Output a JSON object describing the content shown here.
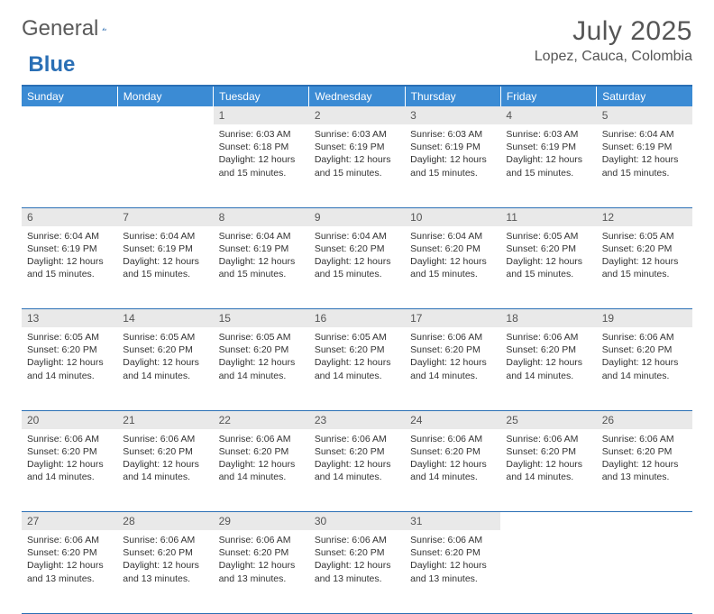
{
  "logo": {
    "part1": "General",
    "part2": "Blue"
  },
  "title": "July 2025",
  "location": "Lopez, Cauca, Colombia",
  "colors": {
    "header_bg": "#3b8bd4",
    "border": "#2a6fb5",
    "daynum_bg": "#e9e9e9"
  },
  "weekdays": [
    "Sunday",
    "Monday",
    "Tuesday",
    "Wednesday",
    "Thursday",
    "Friday",
    "Saturday"
  ],
  "weeks": [
    [
      null,
      null,
      {
        "n": "1",
        "sr": "Sunrise: 6:03 AM",
        "ss": "Sunset: 6:18 PM",
        "dl": "Daylight: 12 hours and 15 minutes."
      },
      {
        "n": "2",
        "sr": "Sunrise: 6:03 AM",
        "ss": "Sunset: 6:19 PM",
        "dl": "Daylight: 12 hours and 15 minutes."
      },
      {
        "n": "3",
        "sr": "Sunrise: 6:03 AM",
        "ss": "Sunset: 6:19 PM",
        "dl": "Daylight: 12 hours and 15 minutes."
      },
      {
        "n": "4",
        "sr": "Sunrise: 6:03 AM",
        "ss": "Sunset: 6:19 PM",
        "dl": "Daylight: 12 hours and 15 minutes."
      },
      {
        "n": "5",
        "sr": "Sunrise: 6:04 AM",
        "ss": "Sunset: 6:19 PM",
        "dl": "Daylight: 12 hours and 15 minutes."
      }
    ],
    [
      {
        "n": "6",
        "sr": "Sunrise: 6:04 AM",
        "ss": "Sunset: 6:19 PM",
        "dl": "Daylight: 12 hours and 15 minutes."
      },
      {
        "n": "7",
        "sr": "Sunrise: 6:04 AM",
        "ss": "Sunset: 6:19 PM",
        "dl": "Daylight: 12 hours and 15 minutes."
      },
      {
        "n": "8",
        "sr": "Sunrise: 6:04 AM",
        "ss": "Sunset: 6:19 PM",
        "dl": "Daylight: 12 hours and 15 minutes."
      },
      {
        "n": "9",
        "sr": "Sunrise: 6:04 AM",
        "ss": "Sunset: 6:20 PM",
        "dl": "Daylight: 12 hours and 15 minutes."
      },
      {
        "n": "10",
        "sr": "Sunrise: 6:04 AM",
        "ss": "Sunset: 6:20 PM",
        "dl": "Daylight: 12 hours and 15 minutes."
      },
      {
        "n": "11",
        "sr": "Sunrise: 6:05 AM",
        "ss": "Sunset: 6:20 PM",
        "dl": "Daylight: 12 hours and 15 minutes."
      },
      {
        "n": "12",
        "sr": "Sunrise: 6:05 AM",
        "ss": "Sunset: 6:20 PM",
        "dl": "Daylight: 12 hours and 15 minutes."
      }
    ],
    [
      {
        "n": "13",
        "sr": "Sunrise: 6:05 AM",
        "ss": "Sunset: 6:20 PM",
        "dl": "Daylight: 12 hours and 14 minutes."
      },
      {
        "n": "14",
        "sr": "Sunrise: 6:05 AM",
        "ss": "Sunset: 6:20 PM",
        "dl": "Daylight: 12 hours and 14 minutes."
      },
      {
        "n": "15",
        "sr": "Sunrise: 6:05 AM",
        "ss": "Sunset: 6:20 PM",
        "dl": "Daylight: 12 hours and 14 minutes."
      },
      {
        "n": "16",
        "sr": "Sunrise: 6:05 AM",
        "ss": "Sunset: 6:20 PM",
        "dl": "Daylight: 12 hours and 14 minutes."
      },
      {
        "n": "17",
        "sr": "Sunrise: 6:06 AM",
        "ss": "Sunset: 6:20 PM",
        "dl": "Daylight: 12 hours and 14 minutes."
      },
      {
        "n": "18",
        "sr": "Sunrise: 6:06 AM",
        "ss": "Sunset: 6:20 PM",
        "dl": "Daylight: 12 hours and 14 minutes."
      },
      {
        "n": "19",
        "sr": "Sunrise: 6:06 AM",
        "ss": "Sunset: 6:20 PM",
        "dl": "Daylight: 12 hours and 14 minutes."
      }
    ],
    [
      {
        "n": "20",
        "sr": "Sunrise: 6:06 AM",
        "ss": "Sunset: 6:20 PM",
        "dl": "Daylight: 12 hours and 14 minutes."
      },
      {
        "n": "21",
        "sr": "Sunrise: 6:06 AM",
        "ss": "Sunset: 6:20 PM",
        "dl": "Daylight: 12 hours and 14 minutes."
      },
      {
        "n": "22",
        "sr": "Sunrise: 6:06 AM",
        "ss": "Sunset: 6:20 PM",
        "dl": "Daylight: 12 hours and 14 minutes."
      },
      {
        "n": "23",
        "sr": "Sunrise: 6:06 AM",
        "ss": "Sunset: 6:20 PM",
        "dl": "Daylight: 12 hours and 14 minutes."
      },
      {
        "n": "24",
        "sr": "Sunrise: 6:06 AM",
        "ss": "Sunset: 6:20 PM",
        "dl": "Daylight: 12 hours and 14 minutes."
      },
      {
        "n": "25",
        "sr": "Sunrise: 6:06 AM",
        "ss": "Sunset: 6:20 PM",
        "dl": "Daylight: 12 hours and 14 minutes."
      },
      {
        "n": "26",
        "sr": "Sunrise: 6:06 AM",
        "ss": "Sunset: 6:20 PM",
        "dl": "Daylight: 12 hours and 13 minutes."
      }
    ],
    [
      {
        "n": "27",
        "sr": "Sunrise: 6:06 AM",
        "ss": "Sunset: 6:20 PM",
        "dl": "Daylight: 12 hours and 13 minutes."
      },
      {
        "n": "28",
        "sr": "Sunrise: 6:06 AM",
        "ss": "Sunset: 6:20 PM",
        "dl": "Daylight: 12 hours and 13 minutes."
      },
      {
        "n": "29",
        "sr": "Sunrise: 6:06 AM",
        "ss": "Sunset: 6:20 PM",
        "dl": "Daylight: 12 hours and 13 minutes."
      },
      {
        "n": "30",
        "sr": "Sunrise: 6:06 AM",
        "ss": "Sunset: 6:20 PM",
        "dl": "Daylight: 12 hours and 13 minutes."
      },
      {
        "n": "31",
        "sr": "Sunrise: 6:06 AM",
        "ss": "Sunset: 6:20 PM",
        "dl": "Daylight: 12 hours and 13 minutes."
      },
      null,
      null
    ]
  ]
}
